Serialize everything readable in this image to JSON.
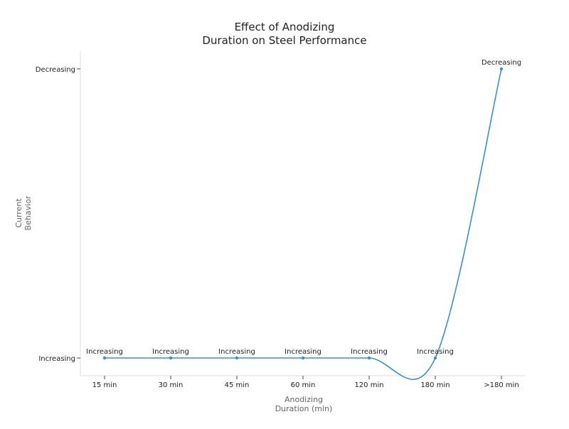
{
  "chart_data": {
    "type": "line",
    "title": [
      "Effect of Anodizing",
      "Duration on Steel Performance"
    ],
    "xlabel": [
      "Anodizing",
      "Duration (min)"
    ],
    "ylabel": [
      "Current",
      "Behavior"
    ],
    "categories": [
      "15 min",
      "30 min",
      "45 min",
      "60 min",
      "120 min",
      "180 min",
      ">180 min"
    ],
    "y_categories": [
      "Increasing",
      "Decreasing"
    ],
    "series": [
      {
        "values": [
          "Increasing",
          "Increasing",
          "Increasing",
          "Increasing",
          "Increasing",
          "Increasing",
          "Decreasing"
        ],
        "color": "#3a8fc8"
      }
    ],
    "data_labels": [
      "Increasing",
      "Increasing",
      "Increasing",
      "Increasing",
      "Increasing",
      "Increasing",
      "Decreasing"
    ],
    "grid": false,
    "legend": "none"
  }
}
